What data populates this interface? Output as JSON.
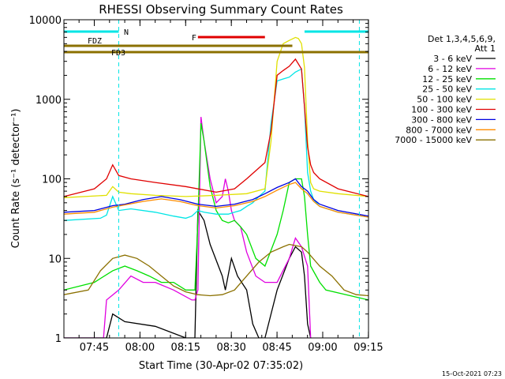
{
  "chart_data": {
    "type": "line",
    "title": "RHESSI Observing Summary Count Rates",
    "xlabel": "Start Time (30-Apr-02 07:35:02)",
    "ylabel": "Count Rate (s⁻¹ detector⁻¹)",
    "footer": "15-Oct-2021 07:23",
    "y_scale": "log",
    "ylim": [
      1,
      10000
    ],
    "xlim_minutes": [
      0,
      100
    ],
    "x_ticks": [
      "07:45",
      "08:00",
      "08:15",
      "08:30",
      "08:45",
      "09:00",
      "09:15"
    ],
    "y_ticks": [
      "1",
      "10",
      "100",
      "1000",
      "10000"
    ],
    "legend": {
      "header": [
        "Det 1,3,4,5,6,9,",
        "Att 1"
      ],
      "placement": "right"
    },
    "annotations": [
      {
        "label": "N",
        "color": "#00e5e5",
        "from": 0,
        "to": 18
      },
      {
        "label": "N",
        "color": "#00e5e5",
        "from": 79,
        "to": 100
      },
      {
        "label": "F",
        "color": "#e00000",
        "from": 44,
        "to": 66
      },
      {
        "label": "FDZ",
        "color": "#8b7000",
        "from": 0,
        "to": 75
      },
      {
        "label": "FD3",
        "color": "#8b7000",
        "from": 0,
        "to": 100
      }
    ],
    "vlines": [
      18,
      97
    ],
    "series": [
      {
        "name": "3 - 6 keV",
        "color": "#000000",
        "x": [
          0,
          14,
          16,
          20,
          30,
          40,
          43,
          44,
          46,
          48,
          52,
          53,
          55,
          57,
          60,
          62,
          64,
          66,
          70,
          74,
          76,
          78,
          79,
          80,
          81
        ],
        "y": [
          1,
          1,
          2,
          1.6,
          1.4,
          1,
          1,
          40,
          30,
          15,
          6,
          4,
          10,
          6,
          4,
          1.5,
          1,
          1,
          4,
          10,
          14,
          12,
          6,
          1.5,
          1
        ]
      },
      {
        "name": "6 - 12 keV",
        "color": "#e000e0",
        "x": [
          0,
          13,
          14,
          18,
          22,
          26,
          30,
          36,
          42,
          43,
          44,
          45,
          46,
          48,
          50,
          52,
          53,
          54,
          55,
          56,
          58,
          60,
          63,
          66,
          70,
          74,
          76,
          78,
          80,
          81
        ],
        "y": [
          1,
          1,
          3,
          4,
          6,
          5,
          5,
          4,
          3,
          3,
          4,
          600,
          300,
          100,
          50,
          60,
          100,
          70,
          40,
          30,
          25,
          12,
          6,
          5,
          5,
          10,
          18,
          14,
          8,
          1
        ]
      },
      {
        "name": "12 - 25 keV",
        "color": "#00e000",
        "x": [
          0,
          10,
          16,
          20,
          24,
          28,
          32,
          36,
          40,
          43,
          44,
          45,
          46,
          48,
          50,
          52,
          54,
          56,
          58,
          60,
          63,
          66,
          70,
          72,
          74,
          76,
          78,
          79,
          80,
          81,
          84,
          86,
          100
        ],
        "y": [
          4,
          5,
          7,
          8,
          7,
          6,
          5,
          5,
          4,
          4,
          30,
          500,
          300,
          80,
          40,
          30,
          28,
          30,
          25,
          20,
          10,
          8,
          20,
          40,
          90,
          100,
          100,
          60,
          20,
          8,
          5,
          4,
          3
        ]
      },
      {
        "name": "25 - 50 keV",
        "color": "#00e5e5",
        "x": [
          0,
          12,
          14,
          16,
          18,
          22,
          30,
          36,
          40,
          42,
          44,
          46,
          48,
          50,
          52,
          54,
          56,
          58,
          60,
          62,
          64,
          66,
          68,
          70,
          72,
          74,
          76,
          78,
          79,
          80,
          81,
          82,
          84,
          90,
          100
        ],
        "y": [
          30,
          32,
          35,
          60,
          40,
          42,
          38,
          34,
          32,
          34,
          40,
          38,
          37,
          36,
          36,
          36,
          38,
          40,
          45,
          50,
          60,
          70,
          500,
          1700,
          1800,
          1900,
          2200,
          2400,
          800,
          120,
          70,
          55,
          45,
          38,
          33
        ]
      },
      {
        "name": "50 - 100 keV",
        "color": "#e0e000",
        "x": [
          0,
          14,
          16,
          18,
          22,
          30,
          40,
          50,
          60,
          66,
          68,
          70,
          72,
          74,
          76,
          77,
          78,
          79,
          80,
          81,
          82,
          84,
          90,
          100
        ],
        "y": [
          58,
          62,
          80,
          68,
          65,
          62,
          60,
          62,
          65,
          75,
          300,
          3000,
          5000,
          5500,
          6000,
          5800,
          5000,
          2500,
          300,
          90,
          75,
          70,
          65,
          60
        ]
      },
      {
        "name": "100 - 300 keV",
        "color": "#e00000",
        "x": [
          0,
          10,
          14,
          16,
          18,
          22,
          30,
          40,
          50,
          56,
          60,
          66,
          68,
          70,
          72,
          74,
          76,
          78,
          79,
          80,
          81,
          82,
          84,
          90,
          100
        ],
        "y": [
          60,
          75,
          100,
          150,
          110,
          100,
          90,
          80,
          68,
          75,
          100,
          160,
          400,
          2000,
          2300,
          2600,
          3200,
          2400,
          800,
          250,
          150,
          120,
          100,
          75,
          60
        ]
      },
      {
        "name": "300 - 800 keV",
        "color": "#0000e0",
        "x": [
          0,
          10,
          16,
          20,
          26,
          32,
          38,
          44,
          50,
          56,
          62,
          66,
          70,
          74,
          76,
          78,
          80,
          82,
          84,
          90,
          100
        ],
        "y": [
          38,
          40,
          46,
          48,
          55,
          60,
          55,
          48,
          45,
          48,
          55,
          65,
          78,
          90,
          100,
          80,
          70,
          55,
          48,
          40,
          34
        ]
      },
      {
        "name": "800 - 7000 keV",
        "color": "#ff8c00",
        "x": [
          0,
          10,
          16,
          20,
          26,
          32,
          38,
          44,
          50,
          56,
          62,
          66,
          70,
          74,
          76,
          78,
          80,
          82,
          84,
          90,
          100
        ],
        "y": [
          36,
          38,
          44,
          47,
          52,
          56,
          52,
          46,
          43,
          46,
          52,
          60,
          72,
          85,
          90,
          75,
          65,
          52,
          45,
          38,
          33
        ]
      },
      {
        "name": "7000 - 15000 keV",
        "color": "#8b7000",
        "x": [
          0,
          8,
          12,
          16,
          20,
          24,
          28,
          32,
          36,
          40,
          44,
          48,
          52,
          56,
          60,
          64,
          68,
          72,
          74,
          76,
          78,
          80,
          84,
          88,
          92,
          96,
          100
        ],
        "y": [
          3.5,
          4,
          7,
          10,
          11,
          10,
          8,
          6,
          4.5,
          3.8,
          3.5,
          3.4,
          3.5,
          4,
          6,
          9,
          12,
          14,
          15,
          14.5,
          14,
          12,
          8,
          6,
          4,
          3.5,
          3.4
        ]
      }
    ]
  }
}
